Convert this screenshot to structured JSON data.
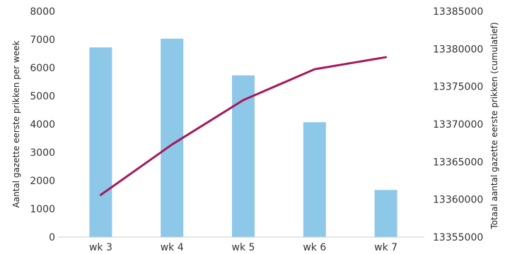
{
  "chart_data": {
    "type": "bar",
    "categories": [
      "wk 3",
      "wk 4",
      "wk 5",
      "wk 6",
      "wk 7"
    ],
    "series": [
      {
        "type": "bar",
        "axis": "left",
        "values": [
          6720,
          7030,
          5730,
          4070,
          1670
        ],
        "color": "#8ec8e8"
      },
      {
        "type": "line",
        "axis": "right",
        "values": [
          13360600,
          13367300,
          13373200,
          13377300,
          13378900
        ],
        "color": "#a6185a"
      }
    ],
    "y_left": {
      "label": "Aantal gazette eerste prikken per week",
      "min": 0,
      "max": 8000,
      "step": 1000,
      "ticks": [
        "0",
        "1000",
        "2000",
        "3000",
        "4000",
        "5000",
        "6000",
        "7000",
        "8000"
      ]
    },
    "y_right": {
      "label": "Totaal aantal gazette eerste prikken (cumulatief)",
      "min": 13355000,
      "max": 13385000,
      "step": 5000,
      "ticks": [
        "13355000",
        "13360000",
        "13365000",
        "13370000",
        "13375000",
        "13380000",
        "13385000"
      ]
    },
    "xlabel": "",
    "grid": false,
    "legend": "none"
  }
}
